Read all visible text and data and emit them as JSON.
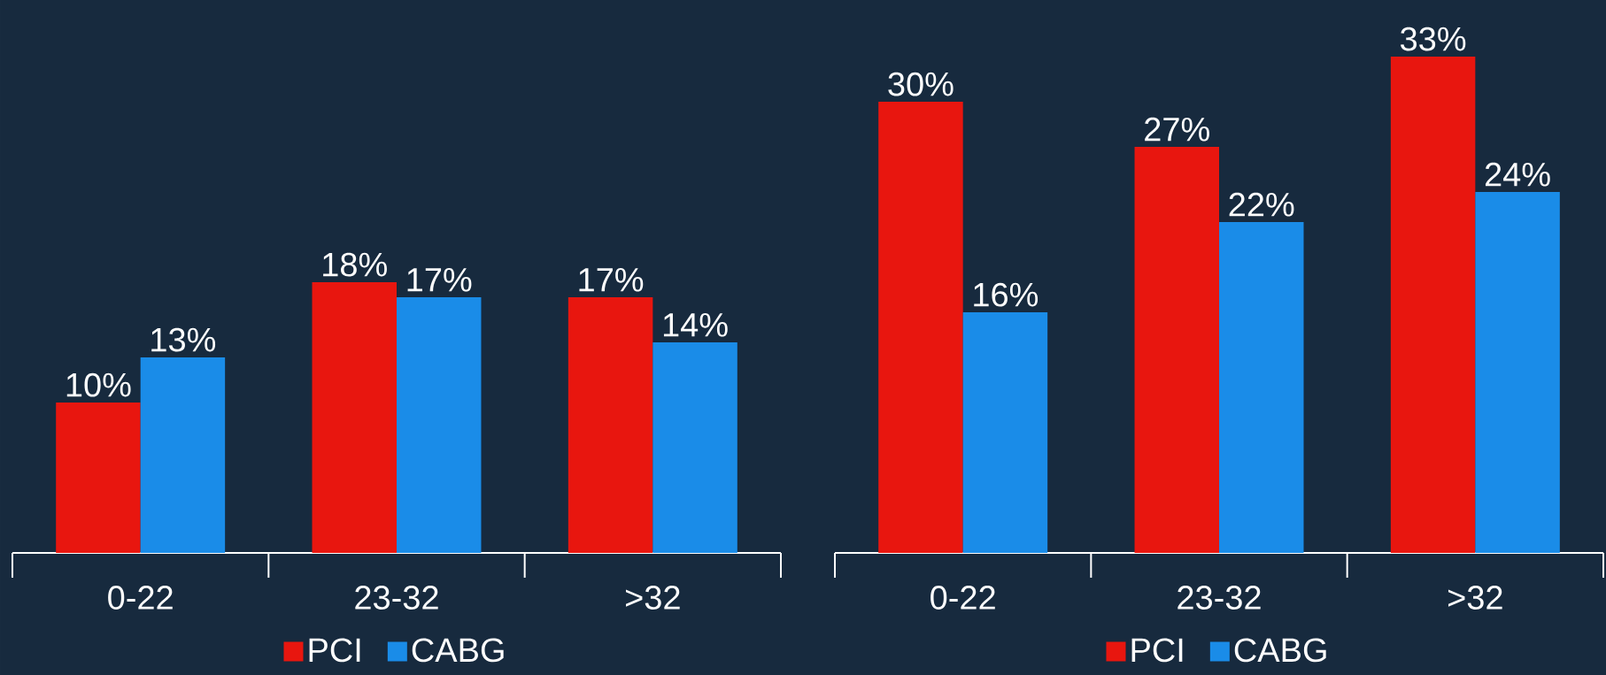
{
  "chart_data": [
    {
      "type": "bar",
      "categories": [
        "0-22",
        "23-32",
        ">32"
      ],
      "legend": "bottom",
      "series": [
        {
          "name": "PCI",
          "color": "#e8160f",
          "values": [
            10,
            18,
            17
          ],
          "value_labels": [
            "10%",
            "18%",
            "17%"
          ]
        },
        {
          "name": "CABG",
          "color": "#1a8ce8",
          "values": [
            13,
            17,
            14
          ],
          "value_labels": [
            "13%",
            "17%",
            "14%"
          ]
        }
      ]
    },
    {
      "type": "bar",
      "categories": [
        "0-22",
        "23-32",
        ">32"
      ],
      "legend": "bottom",
      "series": [
        {
          "name": "PCI",
          "color": "#e8160f",
          "values": [
            30,
            27,
            33
          ],
          "value_labels": [
            "30%",
            "27%",
            "33%"
          ]
        },
        {
          "name": "CABG",
          "color": "#1a8ce8",
          "values": [
            16,
            22,
            24
          ],
          "value_labels": [
            "16%",
            "22%",
            "24%"
          ]
        }
      ]
    }
  ]
}
